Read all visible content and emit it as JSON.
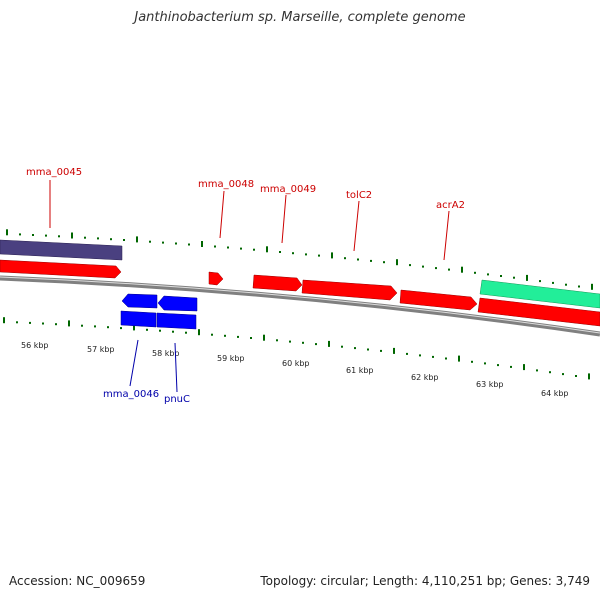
{
  "title": "Janthinobacterium sp. Marseille, complete genome",
  "footer": {
    "accession": "Accession: NC_009659",
    "info": "Topology: circular; Length: 4,110,251 bp; Genes: 3,749"
  },
  "colors": {
    "forward_gene": "#ff0000",
    "reverse_gene": "#0000ff",
    "rna_purple": "#4a4080",
    "rna_green": "#22ee99",
    "backbone": "#808080",
    "tick": "#006600",
    "label_red": "#cc0000",
    "label_blue": "#0000aa"
  },
  "scale_labels": [
    "56 kbp",
    "57 kbp",
    "58 kbp",
    "59 kbp",
    "60 kbp",
    "61 kbp",
    "62 kbp",
    "63 kbp",
    "64 kbp"
  ],
  "gene_labels": {
    "top": [
      "mma_0045",
      "mma_0048",
      "mma_0049",
      "tolC2",
      "acrA2"
    ],
    "bottom": [
      "mma_0046",
      "pnuC"
    ]
  }
}
